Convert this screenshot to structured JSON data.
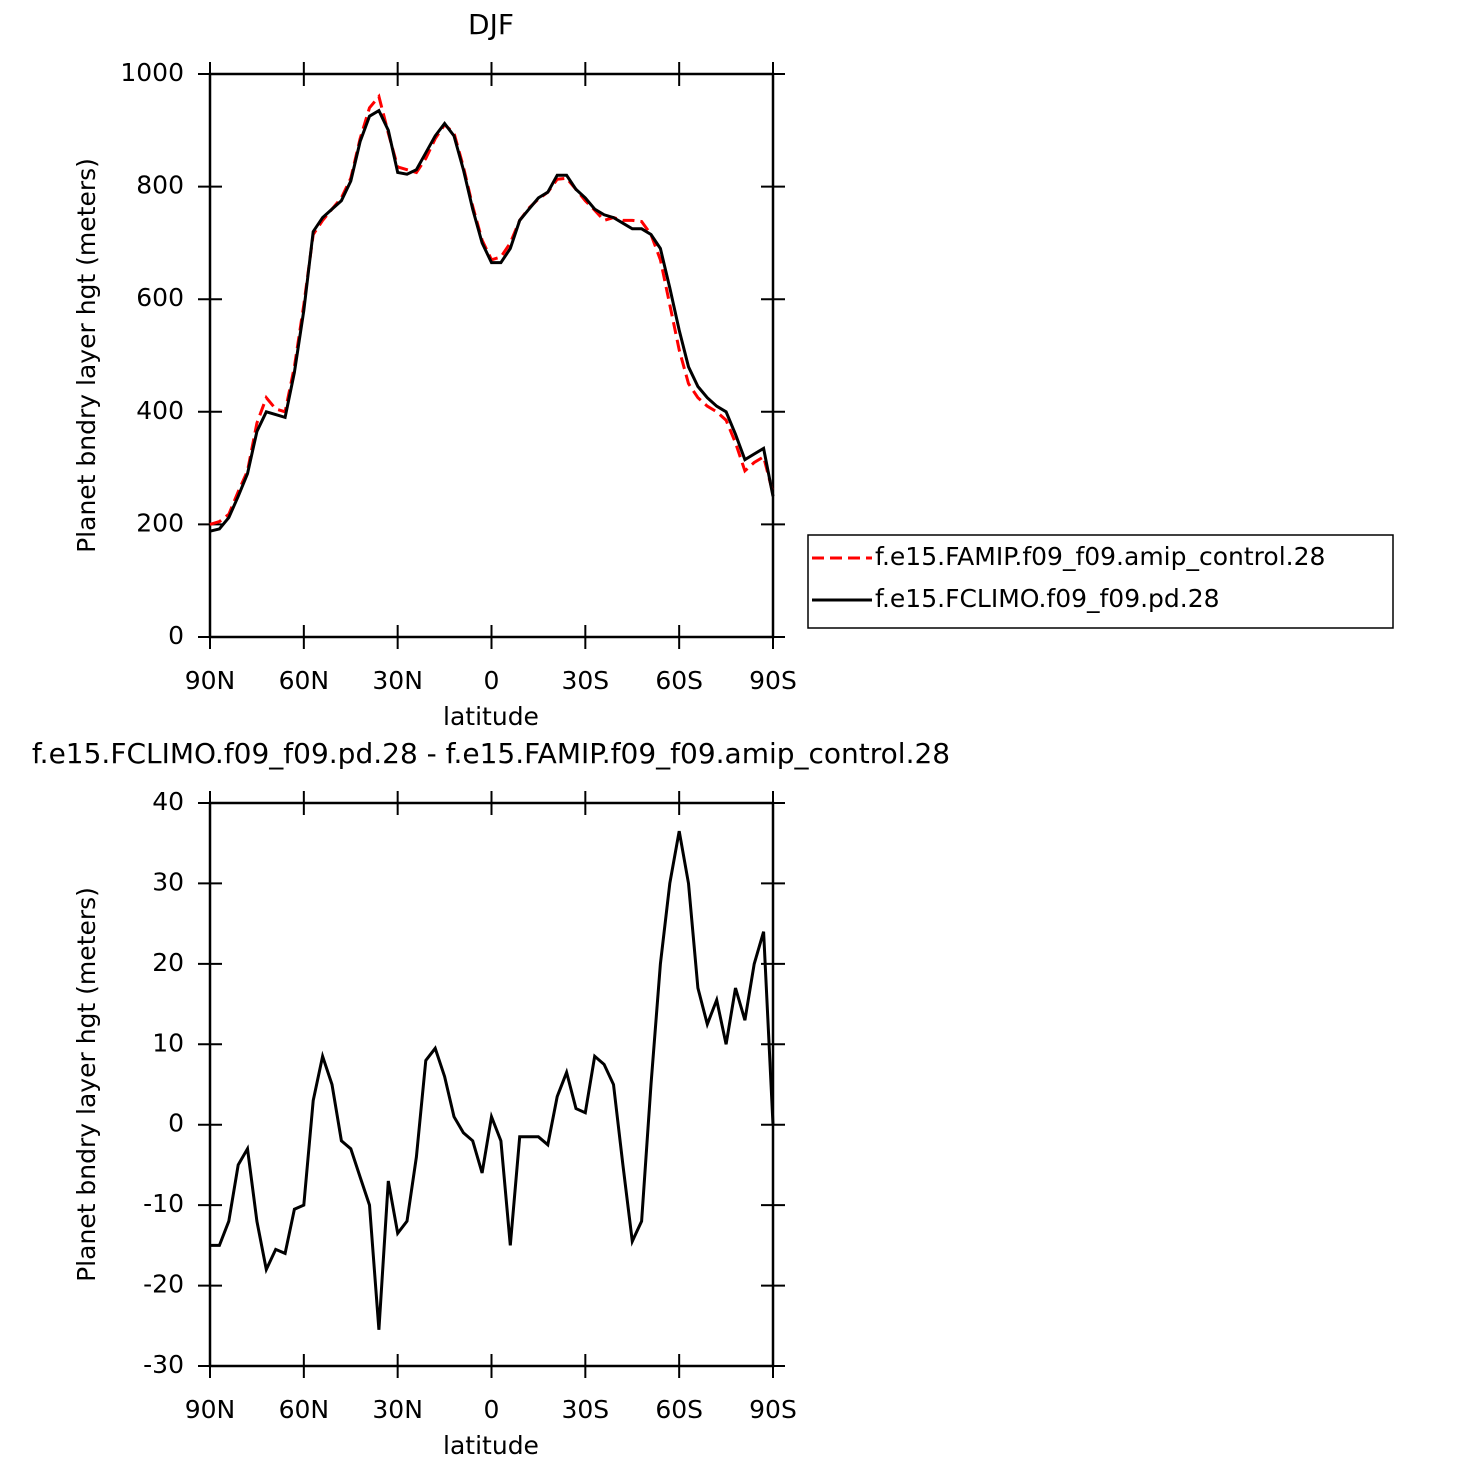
{
  "chart_data": [
    {
      "type": "line",
      "title": "DJF",
      "xlabel": "latitude",
      "ylabel": "Planet bndry layer hgt (meters)",
      "x": [
        90,
        87,
        84,
        81,
        78,
        75,
        72,
        69,
        66,
        63,
        60,
        57,
        54,
        51,
        48,
        45,
        42,
        39,
        36,
        33,
        30,
        27,
        24,
        21,
        18,
        15,
        12,
        9,
        6,
        3,
        0,
        -3,
        -6,
        -9,
        -12,
        -15,
        -18,
        -21,
        -24,
        -27,
        -30,
        -33,
        -36,
        -39,
        -42,
        -45,
        -48,
        -51,
        -54,
        -57,
        -60,
        -63,
        -66,
        -69,
        -72,
        -75,
        -78,
        -81,
        -84,
        -87,
        -90
      ],
      "xlim": [
        90,
        -90
      ],
      "xticks": [
        {
          "value": 90,
          "label": "90N"
        },
        {
          "value": 60,
          "label": "60N"
        },
        {
          "value": 30,
          "label": "30N"
        },
        0,
        {
          "value": -30,
          "label": "30S"
        },
        {
          "value": -60,
          "label": "60S"
        },
        {
          "value": -90,
          "label": "90S"
        }
      ],
      "ylim": [
        0,
        1000
      ],
      "yticks": [
        0,
        200,
        400,
        600,
        800,
        1000
      ],
      "legend": "right",
      "series": [
        {
          "name": "f.e15.FAMIP.f09_f09.amip_control.28",
          "color": "#ff0000",
          "line_style": "dashed",
          "values": [
            200,
            205,
            218,
            258,
            295,
            380,
            425,
            405,
            400,
            480,
            590,
            715,
            740,
            760,
            780,
            815,
            885,
            940,
            960,
            895,
            835,
            830,
            825,
            850,
            885,
            910,
            895,
            835,
            765,
            705,
            670,
            675,
            700,
            740,
            762,
            778,
            790,
            813,
            815,
            795,
            775,
            758,
            740,
            745,
            740,
            740,
            738,
            715,
            670,
            590,
            510,
            450,
            425,
            410,
            400,
            385,
            345,
            295,
            310,
            320,
            255
          ]
        },
        {
          "name": "f.e15.FCLIMO.f09_f09.pd.28",
          "color": "#000000",
          "line_style": "solid",
          "values": [
            188,
            192,
            212,
            250,
            290,
            365,
            400,
            395,
            390,
            470,
            580,
            720,
            745,
            760,
            775,
            810,
            880,
            925,
            935,
            900,
            825,
            822,
            830,
            860,
            890,
            912,
            890,
            830,
            760,
            700,
            665,
            665,
            690,
            740,
            760,
            780,
            790,
            820,
            820,
            795,
            780,
            760,
            750,
            745,
            735,
            725,
            725,
            715,
            690,
            620,
            545,
            480,
            445,
            425,
            410,
            400,
            360,
            315,
            325,
            335,
            250
          ]
        }
      ]
    },
    {
      "type": "line",
      "title": "f.e15.FCLIMO.f09_f09.pd.28 - f.e15.FAMIP.f09_f09.amip_control.28",
      "xlabel": "latitude",
      "ylabel": "Planet bndry layer hgt (meters)",
      "x": [
        90,
        87,
        84,
        81,
        78,
        75,
        72,
        69,
        66,
        63,
        60,
        57,
        54,
        51,
        48,
        45,
        42,
        39,
        36,
        33,
        30,
        27,
        24,
        21,
        18,
        15,
        12,
        9,
        6,
        3,
        0,
        -3,
        -6,
        -9,
        -12,
        -15,
        -18,
        -21,
        -24,
        -27,
        -30,
        -33,
        -36,
        -39,
        -42,
        -45,
        -48,
        -51,
        -54,
        -57,
        -60,
        -63,
        -66,
        -69,
        -72,
        -75,
        -78,
        -81,
        -84,
        -87,
        -90
      ],
      "xlim": [
        90,
        -90
      ],
      "xticks": [
        {
          "value": 90,
          "label": "90N"
        },
        {
          "value": 60,
          "label": "60N"
        },
        {
          "value": 30,
          "label": "30N"
        },
        0,
        {
          "value": -30,
          "label": "30S"
        },
        {
          "value": -60,
          "label": "60S"
        },
        {
          "value": -90,
          "label": "90S"
        }
      ],
      "ylim": [
        -30,
        40
      ],
      "yticks": [
        -30,
        -20,
        -10,
        0,
        10,
        20,
        30,
        40
      ],
      "series": [
        {
          "color": "#000000",
          "line_style": "solid",
          "values": [
            -15,
            -15,
            -12,
            -5,
            -3,
            -12,
            -18,
            -15.5,
            -16,
            -10.5,
            -10,
            3,
            8.5,
            5,
            -2,
            -3,
            -6.5,
            -10,
            -25.5,
            -7,
            -13.5,
            -12,
            -4,
            8,
            9.5,
            6,
            1,
            -1,
            -2,
            -6,
            1,
            -2,
            -15,
            -1.5,
            -1.5,
            -1.5,
            -2.5,
            3.5,
            6.5,
            2,
            1.5,
            8.5,
            7.5,
            5,
            -5,
            -14.5,
            -12,
            5,
            20,
            30,
            36.5,
            30,
            17,
            12.5,
            15.5,
            10,
            17,
            13,
            20,
            24,
            0
          ]
        }
      ]
    }
  ]
}
